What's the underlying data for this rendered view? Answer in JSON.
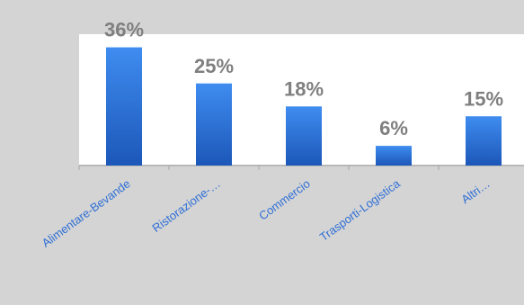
{
  "chart_data": {
    "type": "bar",
    "categories": [
      "Alimentare-Bevande",
      "Ristorazione-…",
      "Commercio",
      "Trasporti-Logistica",
      "Altri…"
    ],
    "values": [
      36,
      25,
      18,
      6,
      15
    ],
    "value_labels": [
      "36%",
      "25%",
      "18%",
      "6%",
      "15%"
    ],
    "title": "",
    "xlabel": "",
    "ylabel": "",
    "ylim": [
      0,
      40
    ],
    "grid": false,
    "legend": "none",
    "colors": {
      "background": "#d4d4d4",
      "plot_area": "#ffffff",
      "bar_top": "#3f8cf0",
      "bar_bottom": "#1c57b8",
      "value_label": "#7f7f7f",
      "tick_label": "#2f6fd6",
      "axis": "#a6a6a6"
    }
  }
}
